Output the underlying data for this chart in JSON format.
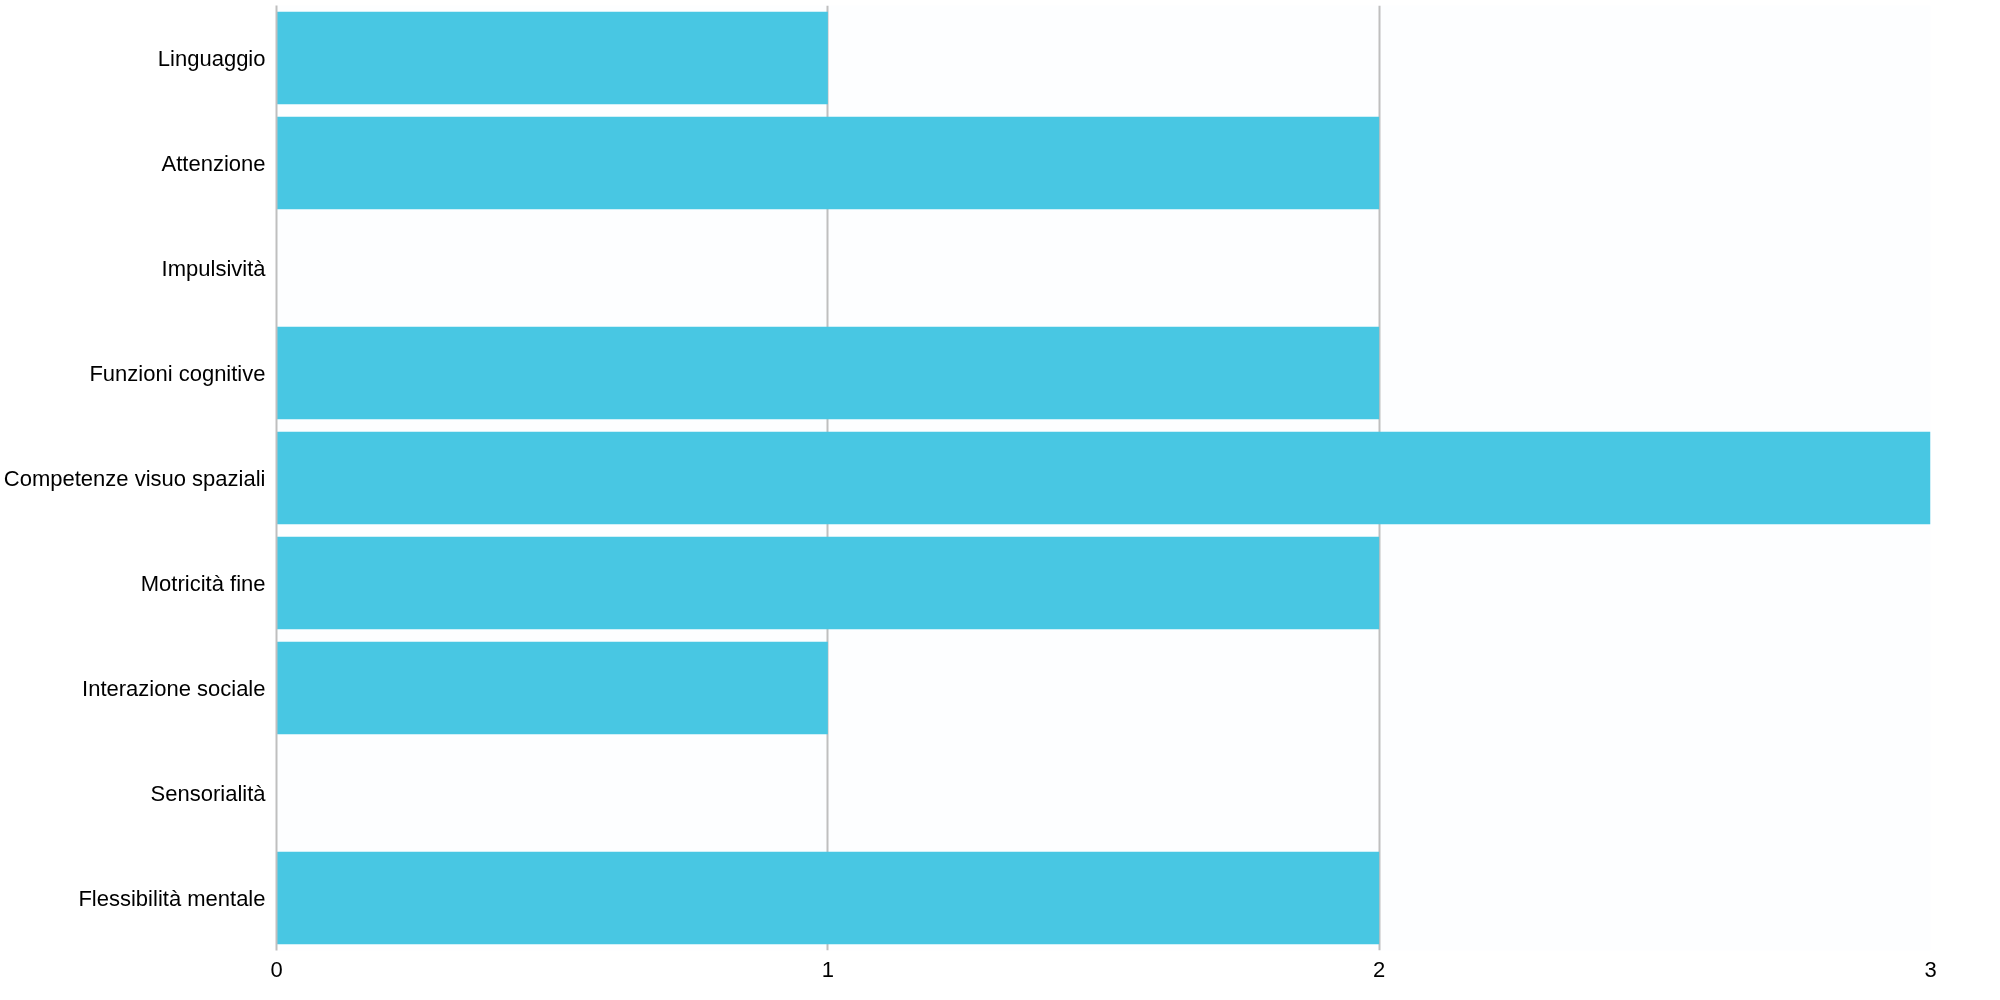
{
  "chart_data": {
    "type": "bar",
    "orientation": "horizontal",
    "categories": [
      "Linguaggio",
      "Attenzione",
      "Impulsività",
      "Funzioni cognitive",
      "Competenze visuo spaziali",
      "Motricità fine",
      "Interazione sociale",
      "Sensorialità",
      "Flessibilità mentale"
    ],
    "values": [
      1,
      2,
      0,
      2,
      3,
      2,
      1,
      0,
      2
    ],
    "color": "#48c7e3",
    "xlim": [
      0,
      3
    ],
    "xticks": [
      0,
      1,
      2,
      3
    ],
    "grid": "x"
  }
}
